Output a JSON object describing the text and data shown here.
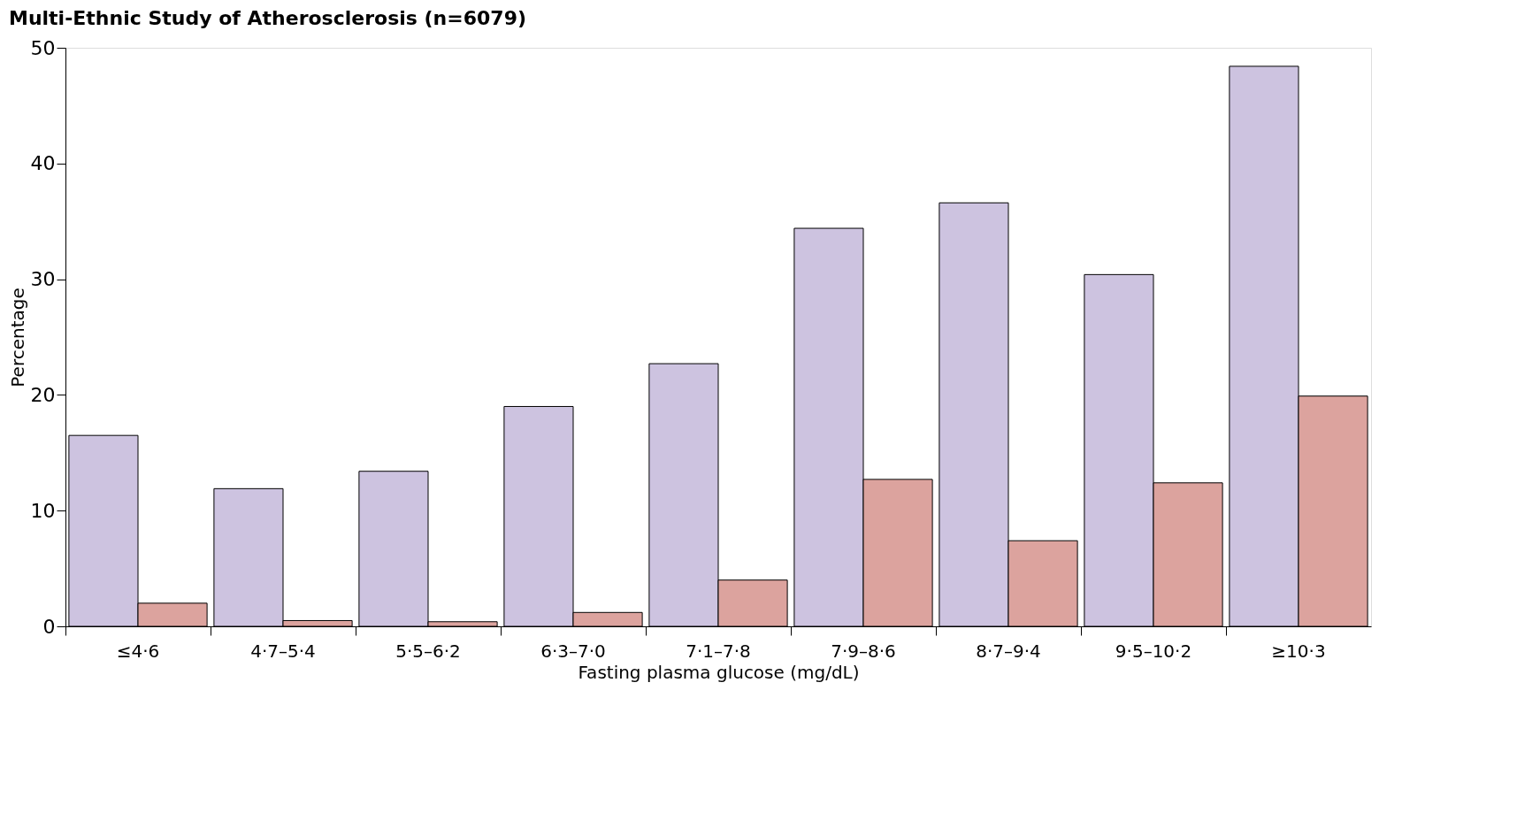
{
  "chart_data": {
    "type": "bar",
    "title": "Multi-Ethnic Study of Atherosclerosis (n=6079)",
    "xlabel": "Fasting plasma glucose (mg/dL)",
    "ylabel": "Percentage",
    "categories": [
      "≤4·6",
      "4·7–5·4",
      "5·5–6·2",
      "6·3–7·0",
      "7·1–7·8",
      "7·9–8·6",
      "8·7–9·4",
      "9·5–10·2",
      "≥10·3"
    ],
    "series": [
      {
        "color": "#cdc3e0",
        "values": [
          16.5,
          11.9,
          13.4,
          19.0,
          22.7,
          34.4,
          36.6,
          30.4,
          48.4
        ]
      },
      {
        "color": "#dca39e",
        "values": [
          2.0,
          0.5,
          0.4,
          1.2,
          4.0,
          12.7,
          7.4,
          12.4,
          19.9
        ]
      }
    ],
    "ylim": [
      0,
      50
    ],
    "yticks": [
      0,
      10,
      20,
      30,
      40,
      50
    ],
    "grid": false
  }
}
